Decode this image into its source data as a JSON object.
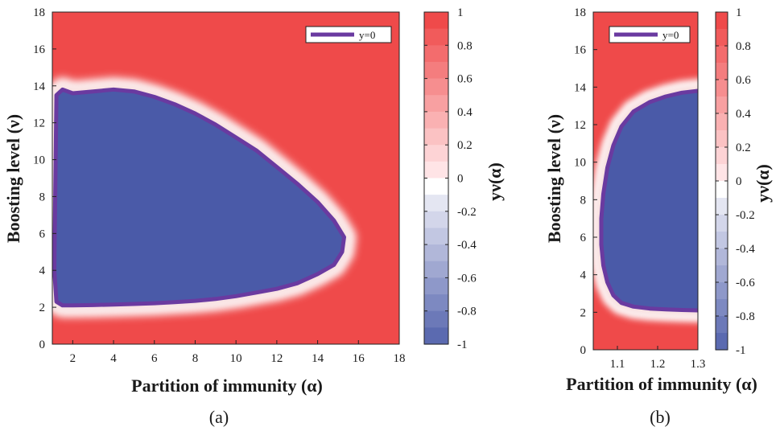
{
  "chart_data": [
    {
      "type": "heatmap",
      "panel_label": "(a)",
      "xlabel": "Partition of immunity (α)",
      "ylabel": "Boosting level (ν)",
      "colorbar_label": "yν(α)",
      "xlim": [
        1,
        18
      ],
      "ylim": [
        0,
        18
      ],
      "x_ticks": [
        "2",
        "4",
        "6",
        "8",
        "10",
        "12",
        "14",
        "16",
        "18"
      ],
      "y_ticks": [
        "0",
        "2",
        "4",
        "6",
        "8",
        "10",
        "12",
        "14",
        "16",
        "18"
      ],
      "colorbar_range": [
        -1,
        1
      ],
      "colorbar_ticks": [
        "1",
        "0.8",
        "0.6",
        "0.4",
        "0.2",
        "0",
        "-0.2",
        "-0.4",
        "-0.6",
        "-0.8",
        "-1"
      ],
      "legend": {
        "entries": [
          "y=0"
        ],
        "placement": "top-right"
      },
      "series": [
        {
          "name": "y=0",
          "x": [
            1.1,
            1.2,
            1.5,
            2.0,
            3.0,
            4.0,
            5.0,
            6.0,
            7.0,
            8.0,
            9.0,
            10.0,
            11.0,
            12.0,
            13.0,
            14.0,
            14.8,
            15.3,
            15.2,
            14.8,
            14.0,
            13.0,
            12.0,
            11.0,
            10.0,
            9.0,
            8.0,
            7.0,
            6.0,
            5.0,
            4.0,
            3.0,
            2.0,
            1.5,
            1.2,
            1.1
          ],
          "y": [
            4.0,
            13.5,
            13.8,
            13.6,
            13.7,
            13.8,
            13.7,
            13.4,
            13.0,
            12.5,
            11.9,
            11.2,
            10.5,
            9.6,
            8.7,
            7.7,
            6.7,
            5.8,
            5.0,
            4.3,
            3.8,
            3.3,
            3.0,
            2.8,
            2.6,
            2.45,
            2.35,
            2.28,
            2.22,
            2.18,
            2.15,
            2.12,
            2.1,
            2.1,
            2.3,
            4.0
          ]
        }
      ]
    },
    {
      "type": "heatmap",
      "panel_label": "(b)",
      "xlabel": "Partition of immunity (α)",
      "ylabel": "Boosting level (ν)",
      "colorbar_label": "yν(α)",
      "xlim": [
        1.04,
        1.3
      ],
      "ylim": [
        0,
        18
      ],
      "x_ticks": [
        "1.1",
        "1.2",
        "1.3"
      ],
      "x_tick_values": [
        1.1,
        1.2,
        1.3
      ],
      "y_ticks": [
        "0",
        "2",
        "4",
        "6",
        "8",
        "10",
        "12",
        "14",
        "16",
        "18"
      ],
      "colorbar_range": [
        -1,
        1
      ],
      "colorbar_ticks": [
        "1",
        "0.8",
        "0.6",
        "0.4",
        "0.2",
        "0",
        "-0.2",
        "-0.4",
        "-0.6",
        "-0.8",
        "-1"
      ],
      "legend": {
        "entries": [
          "y=0"
        ],
        "placement": "top-left"
      },
      "series": [
        {
          "name": "y=0",
          "x": [
            1.3,
            1.26,
            1.22,
            1.18,
            1.14,
            1.11,
            1.09,
            1.075,
            1.065,
            1.06,
            1.06,
            1.065,
            1.075,
            1.09,
            1.11,
            1.14,
            1.18,
            1.22,
            1.26,
            1.3
          ],
          "y": [
            13.8,
            13.7,
            13.5,
            13.2,
            12.7,
            11.9,
            10.9,
            9.7,
            8.3,
            7.0,
            5.6,
            4.5,
            3.6,
            2.9,
            2.5,
            2.3,
            2.2,
            2.15,
            2.12,
            2.1
          ]
        }
      ]
    }
  ]
}
